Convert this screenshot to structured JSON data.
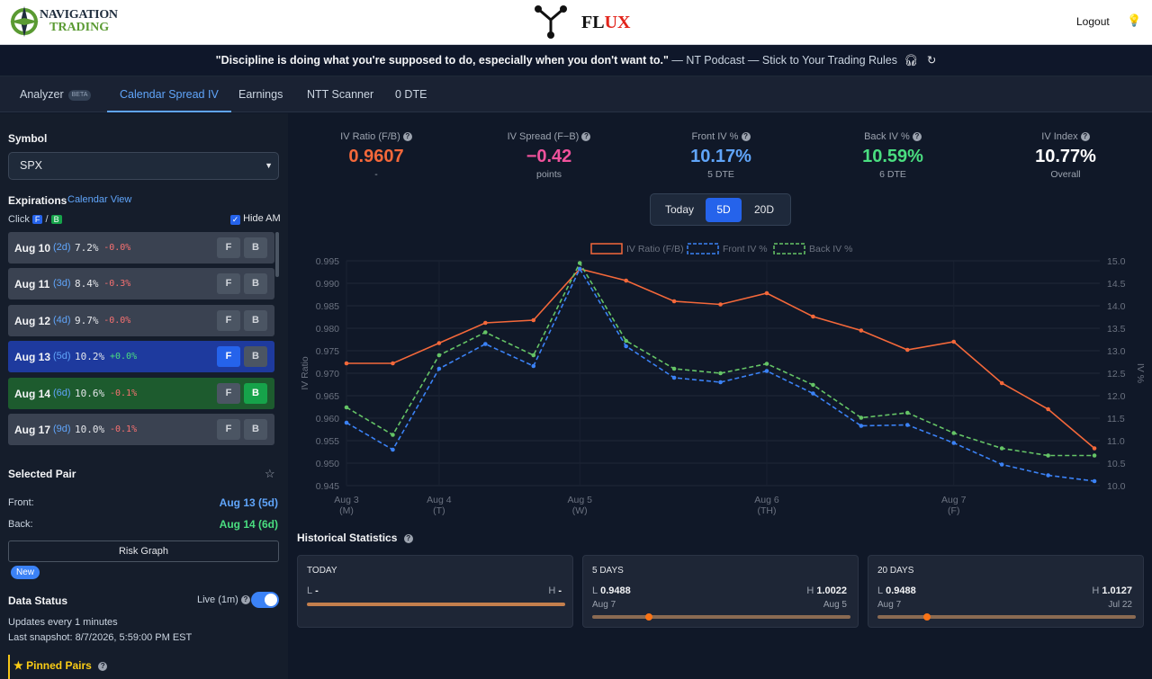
{
  "brand": {
    "logo_line1": "NAVIGATION",
    "logo_line2": "TRADING",
    "app_name_a": "FL",
    "app_name_b": "UX"
  },
  "header": {
    "logout": "Logout"
  },
  "quote": {
    "text": "\"Discipline is doing what you're supposed to do, especially when you don't want to.\"",
    "source": "— NT Podcast — Stick to Your Trading Rules"
  },
  "tabs": [
    {
      "label": "Analyzer",
      "badge": "BETA"
    },
    {
      "label": "Calendar Spread IV"
    },
    {
      "label": "Earnings"
    },
    {
      "label": "NTT Scanner"
    },
    {
      "label": "0 DTE"
    }
  ],
  "sidebar": {
    "symbol_label": "Symbol",
    "symbol_value": "SPX",
    "expirations_label": "Expirations",
    "calendar_view": "Calendar View",
    "click_label": "Click",
    "f": "F",
    "b": "B",
    "slash": "/",
    "hide_am": "Hide AM",
    "expirations": [
      {
        "date": "Aug 10",
        "dte": "(2d)",
        "iv": "7.2%",
        "chg": "-0.0%"
      },
      {
        "date": "Aug 11",
        "dte": "(3d)",
        "iv": "8.4%",
        "chg": "-0.3%"
      },
      {
        "date": "Aug 12",
        "dte": "(4d)",
        "iv": "9.7%",
        "chg": "-0.0%"
      },
      {
        "date": "Aug 13",
        "dte": "(5d)",
        "iv": "10.2%",
        "chg": "+0.0%"
      },
      {
        "date": "Aug 14",
        "dte": "(6d)",
        "iv": "10.6%",
        "chg": "-0.1%"
      },
      {
        "date": "Aug 17",
        "dte": "(9d)",
        "iv": "10.0%",
        "chg": "-0.1%"
      }
    ],
    "selected_pair": "Selected Pair",
    "front_label": "Front:",
    "front_value": "Aug 13 (5d)",
    "back_label": "Back:",
    "back_value": "Aug 14 (6d)",
    "risk_graph": "Risk Graph",
    "new_badge": "New",
    "data_status": "Data Status",
    "live": "Live (1m)",
    "updates": "Updates every 1 minutes",
    "last_snapshot": "Last snapshot: 8/7/2026, 5:59:00 PM EST",
    "pinned": "Pinned Pairs"
  },
  "metrics": [
    {
      "title": "IV Ratio (F/B)",
      "value": "0.9607",
      "sub": "-",
      "color": "#f4683a"
    },
    {
      "title": "IV Spread (F−B)",
      "value": "−0.42",
      "sub": "points",
      "color": "#f0529c"
    },
    {
      "title": "Front IV %",
      "value": "10.17%",
      "sub": "5 DTE",
      "color": "#60a5fa"
    },
    {
      "title": "Back IV %",
      "value": "10.59%",
      "sub": "6 DTE",
      "color": "#4ade80"
    },
    {
      "title": "IV Index",
      "value": "10.77%",
      "sub": "Overall",
      "color": "#ffffff"
    }
  ],
  "range": {
    "today": "Today",
    "five": "5D",
    "twenty": "20D"
  },
  "chart_data": {
    "type": "line",
    "legend": [
      "IV Ratio (F/B)",
      "Front IV %",
      "Back IV %"
    ],
    "ylabel_left": "IV Ratio",
    "ylabel_right": "IV %",
    "y_left_ticks": [
      "0.995",
      "0.990",
      "0.985",
      "0.980",
      "0.975",
      "0.970",
      "0.965",
      "0.960",
      "0.955",
      "0.950",
      "0.945"
    ],
    "y_right_ticks": [
      "15.0",
      "14.5",
      "14.0",
      "13.5",
      "13.0",
      "12.5",
      "12.0",
      "11.5",
      "11.0",
      "10.5",
      "10.0"
    ],
    "ylim_left": [
      0.945,
      0.995
    ],
    "ylim_right": [
      10.0,
      15.0
    ],
    "x_ticks": [
      {
        "label": "Aug 3",
        "sub": "(M)",
        "x": 0
      },
      {
        "label": "Aug 4",
        "sub": "(T)",
        "x": 5.2
      },
      {
        "label": "Aug 5",
        "sub": "(W)",
        "x": 13.1
      },
      {
        "label": "Aug 6",
        "sub": "(TH)",
        "x": 23.6
      },
      {
        "label": "Aug 7",
        "sub": "(F)",
        "x": 34.1
      }
    ],
    "xlim": [
      0,
      42.3
    ],
    "x": [
      0,
      2.6,
      5.2,
      7.8,
      10.5,
      13.1,
      15.7,
      18.4,
      21.0,
      23.6,
      26.2,
      28.9,
      31.5,
      34.1,
      36.8,
      39.4,
      42.0
    ],
    "series": [
      {
        "name": "IV Ratio (F/B)",
        "axis": "left",
        "color": "#f4683a",
        "dash": false,
        "values": [
          0.9722,
          0.9722,
          0.9767,
          0.9812,
          0.9818,
          0.9932,
          0.9906,
          0.986,
          0.9853,
          0.9878,
          0.9826,
          0.9795,
          0.9752,
          0.977,
          0.9678,
          0.962,
          0.9533
        ]
      },
      {
        "name": "Front IV %",
        "axis": "left",
        "color": "#3b82f6",
        "dash": true,
        "values": [
          0.959,
          0.953,
          0.971,
          0.9765,
          0.9716,
          0.9932,
          0.976,
          0.969,
          0.968,
          0.9705,
          0.9655,
          0.9583,
          0.9585,
          0.9545,
          0.9497,
          0.9473,
          0.946
        ]
      },
      {
        "name": "Back IV %",
        "axis": "left",
        "color": "#65c466",
        "dash": true,
        "values": [
          0.9624,
          0.9563,
          0.974,
          0.9791,
          0.974,
          0.9945,
          0.9772,
          0.971,
          0.97,
          0.9721,
          0.9674,
          0.9601,
          0.9612,
          0.9567,
          0.9533,
          0.9517,
          0.9517
        ]
      }
    ]
  },
  "history": {
    "title": "Historical Statistics",
    "cards": [
      {
        "head": "TODAY",
        "l": "L",
        "lv": "-",
        "h": "H",
        "hv": "-",
        "ld": "",
        "hd": "",
        "pos": null
      },
      {
        "head": "5 DAYS",
        "l": "L",
        "lv": "0.9488",
        "h": "H",
        "hv": "1.0022",
        "ld": "Aug 7",
        "hd": "Aug 5",
        "pos": 0.22
      },
      {
        "head": "20 DAYS",
        "l": "L",
        "lv": "0.9488",
        "h": "H",
        "hv": "1.0127",
        "ld": "Aug 7",
        "hd": "Jul 22",
        "pos": 0.19
      }
    ]
  }
}
